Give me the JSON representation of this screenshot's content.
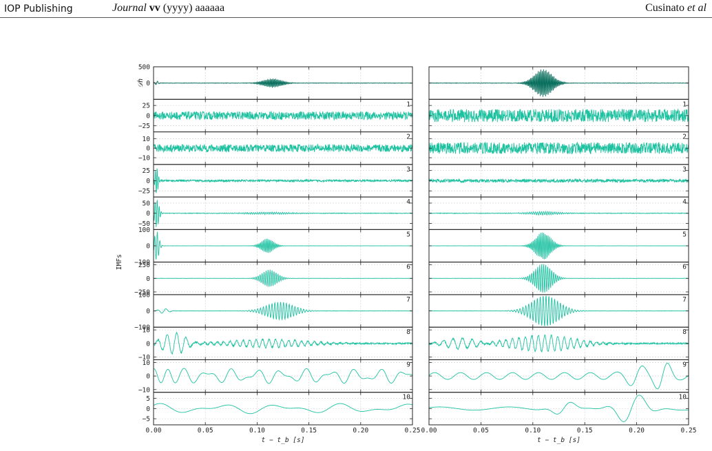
{
  "header": {
    "publisher": "IOP Publishing",
    "journal_name": "Journal",
    "journal_volume": "vv",
    "journal_rest": " (yyyy) aaaaaa",
    "authors_name": "Cusinato ",
    "authors_etal": "et al"
  },
  "colors": {
    "top_trace": "#006a58",
    "imf_trace": "#1cc1a0",
    "axis": "#222222",
    "grid": "#cfcfcf"
  },
  "chart_data": {
    "type": "line",
    "xlabel": "t − t_b  [s]",
    "xlim": [
      0.0,
      0.25
    ],
    "xticks": [
      "0.00",
      "0.05",
      "0.10",
      "0.15",
      "0.20",
      "0.25"
    ],
    "top_ylabel": "𝒟h",
    "imf_ylabel": "IMFs",
    "panels": [
      {
        "label": "",
        "ylim": [
          -500,
          500
        ],
        "yticks": [
          {
            "v": 500,
            "t": "500"
          },
          {
            "v": 0,
            "t": "0"
          }
        ]
      },
      {
        "label": "1",
        "ylim": [
          -40,
          40
        ],
        "yticks": [
          {
            "v": 25,
            "t": "25"
          },
          {
            "v": 0,
            "t": "0"
          },
          {
            "v": -25,
            "t": "−25"
          }
        ]
      },
      {
        "label": "2",
        "ylim": [
          -17,
          17
        ],
        "yticks": [
          {
            "v": 10,
            "t": "10"
          },
          {
            "v": 0,
            "t": "0"
          },
          {
            "v": -10,
            "t": "−10"
          }
        ]
      },
      {
        "label": "3",
        "ylim": [
          -40,
          40
        ],
        "yticks": [
          {
            "v": 25,
            "t": "25"
          },
          {
            "v": 0,
            "t": "0"
          },
          {
            "v": -25,
            "t": "−25"
          }
        ]
      },
      {
        "label": "4",
        "ylim": [
          -80,
          80
        ],
        "yticks": [
          {
            "v": 50,
            "t": "50"
          },
          {
            "v": 0,
            "t": "0"
          },
          {
            "v": -50,
            "t": "−50"
          }
        ]
      },
      {
        "label": "5",
        "ylim": [
          -100,
          100
        ],
        "yticks": [
          {
            "v": 100,
            "t": "100"
          },
          {
            "v": 0,
            "t": "0"
          },
          {
            "v": -100,
            "t": "−100"
          }
        ]
      },
      {
        "label": "6",
        "ylim": [
          -300,
          300
        ],
        "yticks": [
          {
            "v": 250,
            "t": "250"
          },
          {
            "v": 0,
            "t": "0"
          },
          {
            "v": -250,
            "t": "−250"
          }
        ]
      },
      {
        "label": "7",
        "ylim": [
          -100,
          100
        ],
        "yticks": [
          {
            "v": 100,
            "t": "100"
          },
          {
            "v": 0,
            "t": "0"
          },
          {
            "v": -100,
            "t": "−100"
          }
        ]
      },
      {
        "label": "8",
        "ylim": [
          -12,
          12
        ],
        "yticks": [
          {
            "v": 10,
            "t": "10"
          },
          {
            "v": 0,
            "t": "0"
          },
          {
            "v": -10,
            "t": "−10"
          }
        ]
      },
      {
        "label": "9",
        "ylim": [
          -12,
          12
        ],
        "yticks": [
          {
            "v": 10,
            "t": "10"
          },
          {
            "v": 0,
            "t": "0"
          },
          {
            "v": -10,
            "t": "−10"
          }
        ]
      },
      {
        "label": "10",
        "ylim": [
          -8,
          8
        ],
        "yticks": [
          {
            "v": 5,
            "t": "5"
          },
          {
            "v": 0,
            "t": "0"
          },
          {
            "v": -5,
            "t": "−5"
          }
        ]
      }
    ],
    "columns": [
      {
        "name": "left",
        "series": [
          {
            "panel": 0,
            "noise": 6,
            "bursts": [
              {
                "t": 0.115,
                "amp": 140,
                "w": 0.012,
                "f": 800
              },
              {
                "t": 0.003,
                "amp": 60,
                "w": 0.002,
                "f": 300
              }
            ]
          },
          {
            "panel": 1,
            "noise": 10,
            "bursts": []
          },
          {
            "panel": 2,
            "noise": 4,
            "bursts": []
          },
          {
            "panel": 3,
            "noise": 2.5,
            "bursts": [
              {
                "t": 0.003,
                "amp": 35,
                "w": 0.002,
                "f": 600
              }
            ]
          },
          {
            "panel": 4,
            "noise": 1.5,
            "bursts": [
              {
                "t": 0.003,
                "amp": 70,
                "w": 0.003,
                "f": 500
              },
              {
                "t": 0.11,
                "amp": 5,
                "w": 0.03,
                "f": 500
              }
            ]
          },
          {
            "panel": 5,
            "noise": 0.5,
            "bursts": [
              {
                "t": 0.003,
                "amp": 90,
                "w": 0.003,
                "f": 400
              },
              {
                "t": 0.11,
                "amp": 45,
                "w": 0.008,
                "f": 700
              }
            ]
          },
          {
            "panel": 6,
            "noise": 2,
            "bursts": [
              {
                "t": 0.112,
                "amp": 160,
                "w": 0.01,
                "f": 520
              }
            ]
          },
          {
            "panel": 7,
            "noise": 1,
            "bursts": [
              {
                "t": 0.122,
                "amp": 55,
                "w": 0.018,
                "f": 360
              },
              {
                "t": 0.01,
                "amp": 15,
                "w": 0.006,
                "f": 120
              }
            ]
          },
          {
            "panel": 8,
            "noise": 0.6,
            "bursts": [
              {
                "t": 0.02,
                "amp": 8,
                "w": 0.015,
                "f": 110
              },
              {
                "t": 0.11,
                "amp": 3,
                "w": 0.05,
                "f": 160
              }
            ]
          },
          {
            "panel": 9,
            "noise": 0,
            "waves": [
              {
                "f": 42,
                "amp": 3.5,
                "ph": 0.4
              },
              {
                "f": 68,
                "amp": 2,
                "ph": 1.2
              }
            ],
            "bursts": [
              {
                "t": 0.01,
                "amp": 7,
                "w": 0.012,
                "f": 60
              }
            ]
          },
          {
            "panel": 10,
            "noise": 0,
            "waves": [
              {
                "f": 17,
                "amp": 1.5,
                "ph": 1.0
              },
              {
                "f": 29,
                "amp": 1,
                "ph": 0.3
              }
            ],
            "bursts": []
          }
        ]
      },
      {
        "name": "right",
        "series": [
          {
            "panel": 0,
            "noise": 6,
            "bursts": [
              {
                "t": 0.11,
                "amp": 430,
                "w": 0.012,
                "f": 800
              }
            ]
          },
          {
            "panel": 1,
            "noise": 16,
            "bursts": []
          },
          {
            "panel": 2,
            "noise": 6,
            "bursts": []
          },
          {
            "panel": 3,
            "noise": 4,
            "bursts": []
          },
          {
            "panel": 4,
            "noise": 1.5,
            "bursts": [
              {
                "t": 0.11,
                "amp": 8,
                "w": 0.02,
                "f": 500
              }
            ]
          },
          {
            "panel": 5,
            "noise": 0.5,
            "bursts": [
              {
                "t": 0.11,
                "amp": 85,
                "w": 0.01,
                "f": 700
              }
            ]
          },
          {
            "panel": 6,
            "noise": 2,
            "bursts": [
              {
                "t": 0.11,
                "amp": 270,
                "w": 0.011,
                "f": 520
              }
            ]
          },
          {
            "panel": 7,
            "noise": 1,
            "bursts": [
              {
                "t": 0.112,
                "amp": 95,
                "w": 0.018,
                "f": 360
              }
            ]
          },
          {
            "panel": 8,
            "noise": 0.6,
            "bursts": [
              {
                "t": 0.11,
                "amp": 6,
                "w": 0.04,
                "f": 160
              },
              {
                "t": 0.03,
                "amp": 4,
                "w": 0.02,
                "f": 110
              }
            ]
          },
          {
            "panel": 9,
            "noise": 0,
            "waves": [
              {
                "f": 40,
                "amp": 2.5,
                "ph": 0.2
              }
            ],
            "bursts": [
              {
                "t": 0.225,
                "amp": 9,
                "w": 0.01,
                "f": 45
              },
              {
                "t": 0.2,
                "amp": 6,
                "w": 0.012,
                "f": 40
              }
            ]
          },
          {
            "panel": 10,
            "noise": 0,
            "waves": [
              {
                "f": 15,
                "amp": 0.8,
                "ph": 0.6
              }
            ],
            "bursts": [
              {
                "t": 0.195,
                "amp": 7,
                "w": 0.02,
                "f": 30
              },
              {
                "t": 0.13,
                "amp": 3,
                "w": 0.015,
                "f": 35
              }
            ]
          }
        ]
      }
    ]
  }
}
